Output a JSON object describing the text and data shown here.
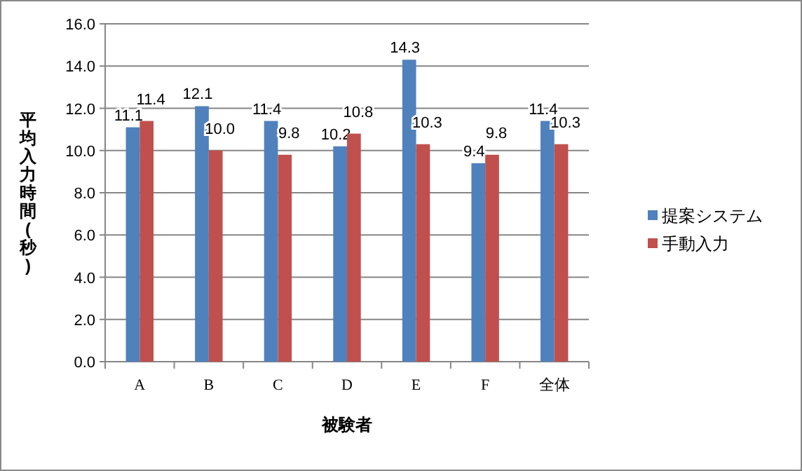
{
  "chart_data": {
    "type": "bar",
    "xlabel": "被験者",
    "ylabel": "平均入力時間(秒)",
    "categories": [
      "A",
      "B",
      "C",
      "D",
      "E",
      "F",
      "全体"
    ],
    "series": [
      {
        "name": "提案システム",
        "color": "#4f81bd",
        "values": [
          11.1,
          12.1,
          11.4,
          10.2,
          14.3,
          9.4,
          11.4
        ],
        "value_labels": [
          "11.1",
          "12.1",
          "11.4",
          "10.2",
          "14.3",
          "9.4",
          "11.4"
        ]
      },
      {
        "name": "手動入力",
        "color": "#c0504d",
        "values": [
          11.4,
          10.0,
          9.8,
          10.8,
          10.3,
          9.8,
          10.3
        ],
        "value_labels": [
          "11.4",
          "10.0",
          "9.8",
          "10.8",
          "10.3",
          "9.8",
          "10.3"
        ]
      }
    ],
    "ylim": [
      0,
      16
    ],
    "yticks": [
      {
        "value": 0,
        "label": "0.0"
      },
      {
        "value": 2,
        "label": "2.0"
      },
      {
        "value": 4,
        "label": "4.0"
      },
      {
        "value": 6,
        "label": "6.0"
      },
      {
        "value": 8,
        "label": "8.0"
      },
      {
        "value": 10,
        "label": "10.0"
      },
      {
        "value": 12,
        "label": "12.0"
      },
      {
        "value": 14,
        "label": "14.0"
      },
      {
        "value": 16,
        "label": "16.0"
      }
    ],
    "grid": "y",
    "legend": "right"
  }
}
